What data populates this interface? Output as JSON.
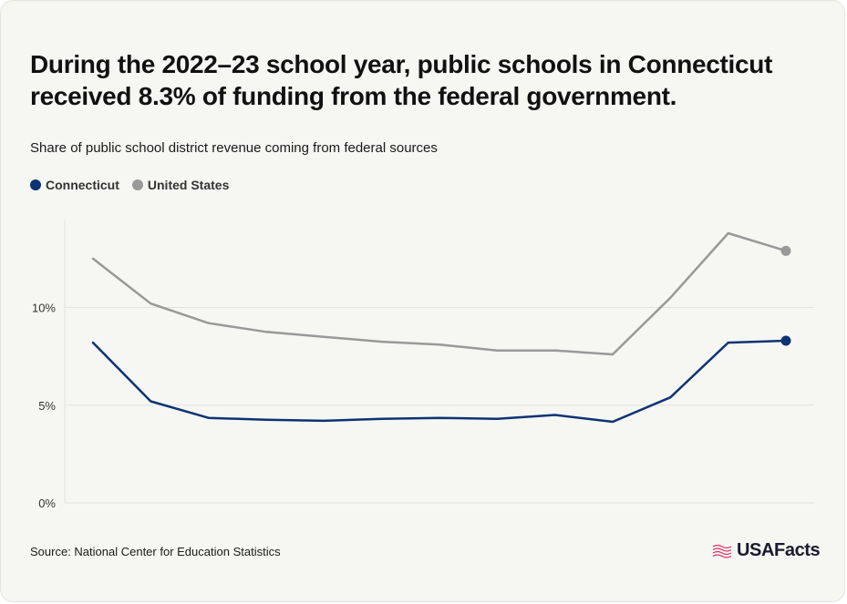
{
  "title": "During the 2022–23 school year, public schools in Connecticut received 8.3% of funding from the federal government.",
  "subtitle": "Share of public school district revenue coming from federal sources",
  "source": "Source: National Center for Education Statistics",
  "logo_text": "USAFacts",
  "colors": {
    "connecticut": "#0d3372",
    "united_states": "#999999",
    "grid": "#e2e2de",
    "logo_flag": "#d6336c"
  },
  "chart_data": {
    "type": "line",
    "x_index": [
      0,
      1,
      2,
      3,
      4,
      5,
      6,
      7,
      8,
      9,
      10,
      11,
      12
    ],
    "y_ticks": [
      0,
      5,
      10
    ],
    "y_tick_labels": [
      "0%",
      "5%",
      "10%"
    ],
    "ylim": [
      0,
      14.5
    ],
    "grid": true,
    "legend_position": "top-left",
    "series": [
      {
        "name": "Connecticut",
        "color": "#0d3372",
        "values": [
          8.2,
          5.2,
          4.35,
          4.25,
          4.2,
          4.3,
          4.35,
          4.3,
          4.5,
          4.15,
          5.4,
          8.2,
          8.3
        ]
      },
      {
        "name": "United States",
        "color": "#999999",
        "values": [
          12.5,
          10.2,
          9.2,
          8.75,
          8.5,
          8.25,
          8.1,
          7.8,
          7.8,
          7.6,
          10.5,
          13.8,
          12.9
        ]
      }
    ]
  }
}
